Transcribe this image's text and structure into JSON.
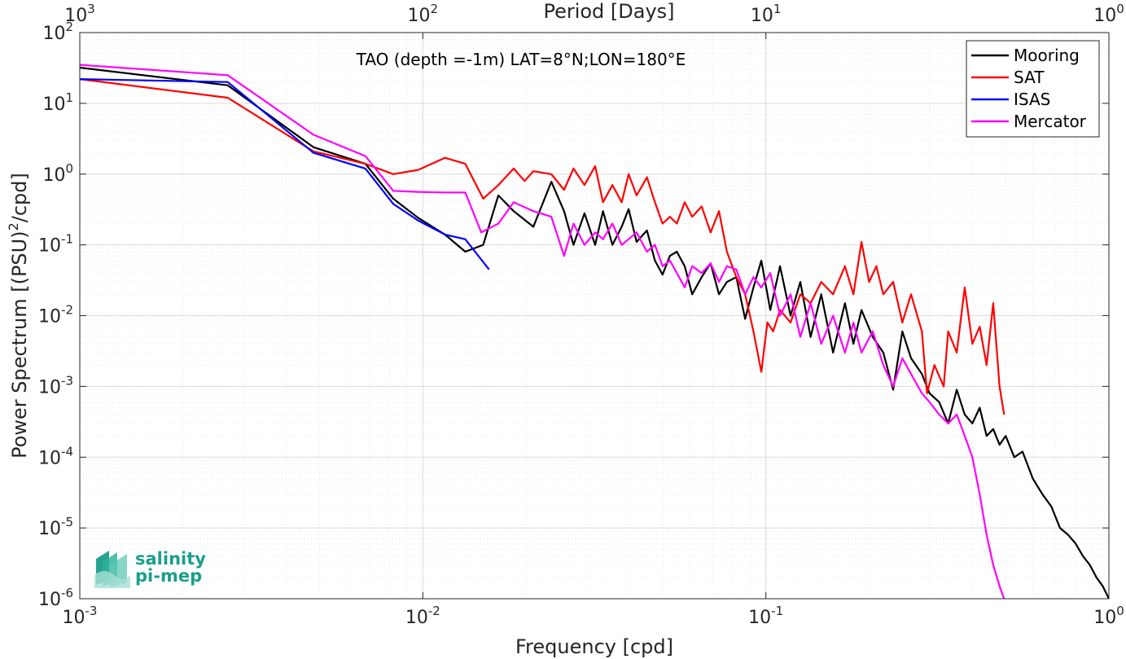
{
  "chart_data": {
    "type": "line",
    "title": "TAO (depth =-1m) LAT=8°N;LON=180°E",
    "xlabel": "Frequency [cpd]",
    "ylabel_main": "Power Spectrum [(PSU)",
    "ylabel_sup": "2",
    "ylabel_tail": "/cpd]",
    "top_xlabel": "Period [Days]",
    "xscale": "log",
    "yscale": "log",
    "xlim": [
      0.001,
      1
    ],
    "ylim": [
      1e-06,
      100
    ],
    "grid": true,
    "legend_position": "top-right",
    "x_ticks": [
      {
        "value": 0.001,
        "base": "10",
        "exp": "-3"
      },
      {
        "value": 0.01,
        "base": "10",
        "exp": "-2"
      },
      {
        "value": 0.1,
        "base": "10",
        "exp": "-1"
      },
      {
        "value": 1,
        "base": "10",
        "exp": "0"
      }
    ],
    "y_ticks": [
      {
        "value": 100,
        "base": "10",
        "exp": "2"
      },
      {
        "value": 10,
        "base": "10",
        "exp": "1"
      },
      {
        "value": 1,
        "base": "10",
        "exp": "0"
      },
      {
        "value": 0.1,
        "base": "10",
        "exp": "-1"
      },
      {
        "value": 0.01,
        "base": "10",
        "exp": "-2"
      },
      {
        "value": 0.001,
        "base": "10",
        "exp": "-3"
      },
      {
        "value": 0.0001,
        "base": "10",
        "exp": "-4"
      },
      {
        "value": 1e-05,
        "base": "10",
        "exp": "-5"
      },
      {
        "value": 1e-06,
        "base": "10",
        "exp": "-6"
      }
    ],
    "top_ticks": [
      {
        "freq": 0.001,
        "base": "10",
        "exp": "3"
      },
      {
        "freq": 0.01,
        "base": "10",
        "exp": "2"
      },
      {
        "freq": 0.1,
        "base": "10",
        "exp": "1"
      },
      {
        "freq": 1,
        "base": "10",
        "exp": "0"
      }
    ],
    "series": [
      {
        "name": "Mooring",
        "color": "#000000",
        "x": [
          0.001,
          0.0027,
          0.0048,
          0.0068,
          0.0082,
          0.0097,
          0.0116,
          0.0133,
          0.015,
          0.0166,
          0.0184,
          0.021,
          0.0237,
          0.0258,
          0.0275,
          0.0296,
          0.0318,
          0.0335,
          0.0357,
          0.038,
          0.0398,
          0.042,
          0.045,
          0.0475,
          0.05,
          0.0525,
          0.055,
          0.058,
          0.061,
          0.065,
          0.069,
          0.073,
          0.077,
          0.082,
          0.087,
          0.092,
          0.097,
          0.103,
          0.11,
          0.118,
          0.126,
          0.135,
          0.145,
          0.157,
          0.17,
          0.18,
          0.19,
          0.205,
          0.22,
          0.235,
          0.25,
          0.265,
          0.285,
          0.3,
          0.32,
          0.34,
          0.36,
          0.38,
          0.4,
          0.42,
          0.44,
          0.46,
          0.48,
          0.5,
          0.53,
          0.56,
          0.6,
          0.64,
          0.68,
          0.72,
          0.76,
          0.8,
          0.84,
          0.88,
          0.92,
          0.96,
          1.0
        ],
        "y": [
          32,
          18,
          2.4,
          1.4,
          0.45,
          0.24,
          0.14,
          0.08,
          0.1,
          0.5,
          0.3,
          0.18,
          0.78,
          0.3,
          0.1,
          0.28,
          0.1,
          0.3,
          0.1,
          0.18,
          0.32,
          0.11,
          0.16,
          0.06,
          0.038,
          0.07,
          0.08,
          0.05,
          0.02,
          0.035,
          0.055,
          0.02,
          0.03,
          0.035,
          0.009,
          0.025,
          0.06,
          0.012,
          0.05,
          0.01,
          0.03,
          0.005,
          0.02,
          0.003,
          0.015,
          0.004,
          0.012,
          0.005,
          0.003,
          0.0009,
          0.006,
          0.0025,
          0.0015,
          0.0008,
          0.0006,
          0.0003,
          0.0009,
          0.0004,
          0.0003,
          0.0005,
          0.0002,
          0.00025,
          0.00015,
          0.0002,
          0.0001,
          0.00012,
          5e-05,
          3e-05,
          2e-05,
          1e-05,
          8e-06,
          6e-06,
          4e-06,
          3e-06,
          2e-06,
          1.5e-06,
          1e-06
        ]
      },
      {
        "name": "SAT",
        "color": "#ff0000",
        "x": [
          0.001,
          0.0027,
          0.0048,
          0.0068,
          0.0082,
          0.0097,
          0.0116,
          0.0133,
          0.015,
          0.0166,
          0.0184,
          0.0198,
          0.021,
          0.0237,
          0.0258,
          0.0275,
          0.0296,
          0.0318,
          0.0335,
          0.0357,
          0.038,
          0.0398,
          0.042,
          0.045,
          0.0475,
          0.05,
          0.0525,
          0.055,
          0.058,
          0.061,
          0.065,
          0.069,
          0.073,
          0.077,
          0.082,
          0.087,
          0.092,
          0.097,
          0.101,
          0.105,
          0.11,
          0.118,
          0.126,
          0.135,
          0.145,
          0.157,
          0.17,
          0.18,
          0.19,
          0.2,
          0.21,
          0.22,
          0.235,
          0.25,
          0.265,
          0.285,
          0.295,
          0.31,
          0.33,
          0.34,
          0.36,
          0.38,
          0.4,
          0.42,
          0.44,
          0.46,
          0.48,
          0.495
        ],
        "y": [
          22,
          12,
          2.1,
          1.4,
          1.0,
          1.15,
          1.7,
          1.4,
          0.45,
          0.7,
          1.2,
          0.8,
          1.1,
          1.0,
          0.6,
          1.2,
          0.7,
          1.3,
          0.4,
          0.7,
          0.4,
          1.0,
          0.5,
          0.9,
          0.4,
          0.2,
          0.25,
          0.2,
          0.4,
          0.25,
          0.35,
          0.15,
          0.3,
          0.08,
          0.035,
          0.02,
          0.006,
          0.0016,
          0.008,
          0.006,
          0.012,
          0.008,
          0.02,
          0.015,
          0.03,
          0.02,
          0.05,
          0.02,
          0.11,
          0.03,
          0.05,
          0.02,
          0.03,
          0.008,
          0.02,
          0.006,
          0.0008,
          0.002,
          0.001,
          0.006,
          0.003,
          0.025,
          0.004,
          0.007,
          0.002,
          0.015,
          0.001,
          0.0004
        ]
      },
      {
        "name": "ISAS",
        "color": "#0000ff",
        "x": [
          0.001,
          0.0027,
          0.0048,
          0.0068,
          0.0082,
          0.0097,
          0.0116,
          0.0133,
          0.0142,
          0.0156
        ],
        "y": [
          22,
          20,
          2.0,
          1.2,
          0.38,
          0.22,
          0.14,
          0.12,
          0.08,
          0.045
        ]
      },
      {
        "name": "Mercator",
        "color": "#ff00ff",
        "x": [
          0.001,
          0.0027,
          0.0048,
          0.0068,
          0.0082,
          0.0097,
          0.0116,
          0.0133,
          0.0148,
          0.0166,
          0.0184,
          0.021,
          0.0237,
          0.0258,
          0.0275,
          0.0296,
          0.0318,
          0.0335,
          0.0357,
          0.038,
          0.0398,
          0.042,
          0.045,
          0.0475,
          0.05,
          0.0525,
          0.055,
          0.058,
          0.061,
          0.065,
          0.069,
          0.073,
          0.077,
          0.082,
          0.087,
          0.092,
          0.097,
          0.103,
          0.11,
          0.118,
          0.126,
          0.135,
          0.145,
          0.157,
          0.17,
          0.18,
          0.19,
          0.205,
          0.22,
          0.235,
          0.25,
          0.265,
          0.285,
          0.3,
          0.32,
          0.34,
          0.36,
          0.38,
          0.4,
          0.42,
          0.44,
          0.46,
          0.48,
          0.495
        ],
        "y": [
          35,
          25,
          3.6,
          1.8,
          0.58,
          0.56,
          0.55,
          0.55,
          0.15,
          0.2,
          0.4,
          0.3,
          0.25,
          0.07,
          0.2,
          0.1,
          0.15,
          0.12,
          0.2,
          0.1,
          0.12,
          0.15,
          0.08,
          0.1,
          0.05,
          0.06,
          0.04,
          0.025,
          0.05,
          0.04,
          0.055,
          0.03,
          0.05,
          0.045,
          0.02,
          0.035,
          0.025,
          0.04,
          0.01,
          0.02,
          0.005,
          0.015,
          0.004,
          0.01,
          0.003,
          0.008,
          0.003,
          0.006,
          0.002,
          0.001,
          0.0025,
          0.0015,
          0.0008,
          0.0006,
          0.0004,
          0.0003,
          0.0004,
          0.0002,
          0.0001,
          3e-05,
          8e-06,
          3e-06,
          1.5e-06,
          1e-06
        ]
      }
    ]
  },
  "logo": {
    "line1": "salinity",
    "line2": "pi-mep",
    "color": "#1a9e8a"
  }
}
